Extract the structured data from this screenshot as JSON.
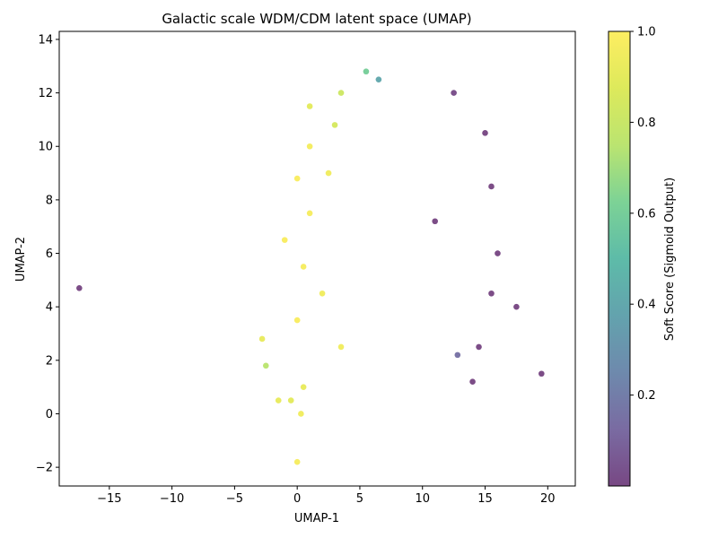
{
  "chart_data": {
    "type": "scatter",
    "title": "Galactic scale WDM/CDM latent space (UMAP)",
    "xlabel": "UMAP-1",
    "ylabel": "UMAP-2",
    "xlim": [
      -19,
      22.2
    ],
    "ylim": [
      -2.7,
      14.3
    ],
    "xticks": [
      -15,
      -10,
      -5,
      0,
      5,
      10,
      15,
      20
    ],
    "yticks": [
      -2,
      0,
      2,
      4,
      6,
      8,
      10,
      12,
      14
    ],
    "xtick_labels": [
      "−15",
      "−10",
      "−5",
      "0",
      "5",
      "10",
      "15",
      "20"
    ],
    "ytick_labels": [
      "−2",
      "0",
      "2",
      "4",
      "6",
      "8",
      "10",
      "12",
      "14"
    ],
    "grid": false,
    "marker_alpha": 0.7,
    "colorbar": {
      "label": "Soft Score (Sigmoid Output)",
      "colormap": "viridis",
      "range": [
        0,
        1
      ],
      "ticks": [
        0.2,
        0.4,
        0.6,
        0.8,
        1.0
      ],
      "tick_labels": [
        "0.2",
        "0.4",
        "0.6",
        "0.8",
        "1.0"
      ]
    },
    "clusters": [
      {
        "x": -17.4,
        "y": 4.7,
        "score": 0.0
      },
      {
        "x": 0.0,
        "y": -1.8,
        "score": 0.97
      },
      {
        "x": 0.3,
        "y": 0.0,
        "score": 0.95
      },
      {
        "x": -0.5,
        "y": 0.5,
        "score": 0.9
      },
      {
        "x": 0.5,
        "y": 1.0,
        "score": 0.92
      },
      {
        "x": -2.8,
        "y": 2.8,
        "score": 0.92
      },
      {
        "x": -2.5,
        "y": 1.8,
        "score": 0.75
      },
      {
        "x": -1.5,
        "y": 0.5,
        "score": 0.92
      },
      {
        "x": 0.0,
        "y": 3.5,
        "score": 0.98
      },
      {
        "x": 0.5,
        "y": 5.5,
        "score": 0.97
      },
      {
        "x": 2.0,
        "y": 4.5,
        "score": 0.95
      },
      {
        "x": 3.5,
        "y": 2.5,
        "score": 0.95
      },
      {
        "x": -1.0,
        "y": 6.5,
        "score": 0.98
      },
      {
        "x": 1.0,
        "y": 7.5,
        "score": 0.97
      },
      {
        "x": 0.0,
        "y": 8.8,
        "score": 0.98
      },
      {
        "x": 2.5,
        "y": 9.0,
        "score": 0.95
      },
      {
        "x": 1.0,
        "y": 10.0,
        "score": 0.96
      },
      {
        "x": 3.0,
        "y": 10.8,
        "score": 0.85
      },
      {
        "x": 1.0,
        "y": 11.5,
        "score": 0.9
      },
      {
        "x": 3.5,
        "y": 12.0,
        "score": 0.82
      },
      {
        "x": 5.5,
        "y": 12.8,
        "score": 0.6
      },
      {
        "x": 6.5,
        "y": 12.5,
        "score": 0.4
      },
      {
        "x": 11.0,
        "y": 7.2,
        "score": 0.0
      },
      {
        "x": 12.5,
        "y": 12.0,
        "score": 0.02
      },
      {
        "x": 15.0,
        "y": 10.5,
        "score": 0.0
      },
      {
        "x": 15.5,
        "y": 8.5,
        "score": 0.0
      },
      {
        "x": 16.0,
        "y": 6.0,
        "score": 0.0
      },
      {
        "x": 15.5,
        "y": 4.5,
        "score": 0.0
      },
      {
        "x": 17.5,
        "y": 4.0,
        "score": 0.0
      },
      {
        "x": 14.5,
        "y": 2.5,
        "score": 0.0
      },
      {
        "x": 12.8,
        "y": 2.2,
        "score": 0.15
      },
      {
        "x": 14.0,
        "y": 1.2,
        "score": 0.0
      },
      {
        "x": 19.5,
        "y": 1.5,
        "score": 0.0
      }
    ]
  }
}
